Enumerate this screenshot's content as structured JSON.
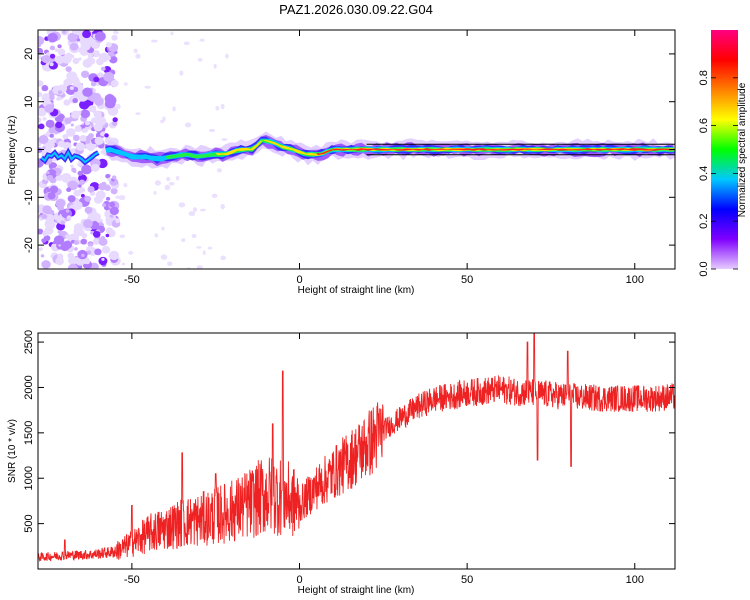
{
  "chart_data": [
    {
      "type": "heatmap",
      "title": "PAZ1.2026.030.09.22.G04",
      "xlabel": "Height of straight line (km)",
      "ylabel": "Frequency (Hz)",
      "xlim": [
        -78,
        112
      ],
      "ylim": [
        -25,
        25
      ],
      "x_ticks": [
        -50,
        0,
        50,
        100
      ],
      "x_tick_labels": [
        "-50",
        "0",
        "50",
        "100"
      ],
      "y_ticks": [
        -20,
        -10,
        0,
        10,
        20
      ],
      "y_tick_labels": [
        "-20",
        "-10",
        "0",
        "10",
        "20"
      ],
      "colorbar": {
        "label": "Normalized spectral amplitude",
        "range": [
          0,
          1
        ],
        "ticks": [
          0.0,
          0.2,
          0.4,
          0.6,
          0.8
        ],
        "tick_labels": [
          "0.0",
          "0.2",
          "0.4",
          "0.6",
          "0.8"
        ],
        "colors": [
          "#e6ccff",
          "#8000ff",
          "#0000ff",
          "#00c8ff",
          "#00ff00",
          "#ffff00",
          "#ff8000",
          "#ff0000",
          "#ff0080"
        ]
      },
      "ridge": {
        "description": "frequency of peak amplitude versus height",
        "x": [
          -76,
          -72,
          -68,
          -64,
          -60,
          -57,
          -54,
          -50,
          -46,
          -42,
          -38,
          -34,
          -30,
          -26,
          -22,
          -18,
          -14,
          -11,
          -8,
          -5,
          -2,
          2,
          6,
          10,
          15,
          20,
          30,
          40,
          50,
          60,
          70,
          80,
          90,
          100,
          112
        ],
        "y": [
          -2,
          -1,
          -1.5,
          -2,
          -1,
          0,
          -0.5,
          -1.5,
          -1.5,
          -2,
          -1.5,
          -1,
          -1.5,
          -1,
          -1,
          0,
          0,
          2,
          1.5,
          0.5,
          0,
          -1,
          -1,
          0,
          0,
          0,
          0,
          0,
          0,
          0,
          0,
          0,
          0,
          0,
          0
        ]
      },
      "noise_region": {
        "x_range": [
          -78,
          -57
        ],
        "y_range": [
          -25,
          25
        ]
      }
    },
    {
      "type": "line",
      "xlabel": "Height of straight line (km)",
      "ylabel": "SNR (10 * v/v)",
      "xlim": [
        -78,
        112
      ],
      "ylim": [
        0,
        2600
      ],
      "x_ticks": [
        -50,
        0,
        50,
        100
      ],
      "x_tick_labels": [
        "-50",
        "0",
        "50",
        "100"
      ],
      "y_ticks": [
        500,
        1000,
        1500,
        2000,
        2500
      ],
      "y_tick_labels": [
        "500",
        "1000",
        "1500",
        "2000",
        "2500"
      ],
      "series": [
        {
          "name": "SNR",
          "color": "#ee2222",
          "x": [
            -78,
            -70,
            -62,
            -55,
            -50,
            -45,
            -40,
            -35,
            -30,
            -25,
            -20,
            -15,
            -10,
            -5,
            0,
            5,
            10,
            15,
            20,
            25,
            30,
            35,
            40,
            45,
            50,
            55,
            60,
            65,
            70,
            75,
            80,
            85,
            90,
            95,
            100,
            105,
            112
          ],
          "y": [
            130,
            150,
            160,
            190,
            280,
            390,
            450,
            510,
            540,
            590,
            640,
            720,
            820,
            800,
            700,
            900,
            1050,
            1200,
            1360,
            1530,
            1660,
            1780,
            1870,
            1900,
            1940,
            1960,
            1980,
            1950,
            1940,
            1920,
            1900,
            1890,
            1880,
            1880,
            1880,
            1880,
            1900
          ]
        }
      ],
      "spikes": [
        {
          "x": -70,
          "y": 320
        },
        {
          "x": -50,
          "y": 700
        },
        {
          "x": -35,
          "y": 1280
        },
        {
          "x": -25,
          "y": 1050
        },
        {
          "x": -5,
          "y": 2180
        },
        {
          "x": -8,
          "y": 1600
        },
        {
          "x": 68,
          "y": 2500
        },
        {
          "x": 70,
          "y": 2600
        },
        {
          "x": 71,
          "y": 1200
        },
        {
          "x": 80,
          "y": 2400
        },
        {
          "x": 81,
          "y": 1130
        }
      ]
    }
  ]
}
